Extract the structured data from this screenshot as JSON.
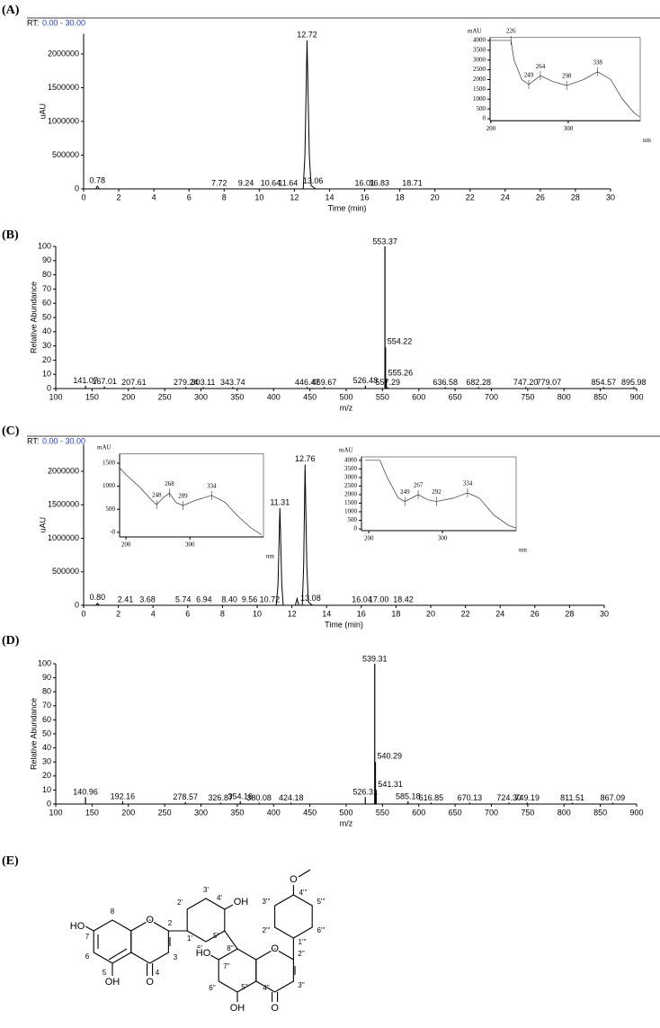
{
  "panel_labels": [
    "(A)",
    "(B)",
    "(C)",
    "(D)",
    "(E)"
  ],
  "chart_data": [
    {
      "type": "line",
      "rt_label": "RT:",
      "rt_range": "0.00 - 30.00",
      "xlabel": "Time (min)",
      "ylabel": "uAU",
      "x": [
        0,
        0.7,
        0.78,
        0.9,
        12.5,
        12.6,
        12.72,
        12.85,
        12.95,
        13.06,
        13.2,
        30
      ],
      "values": [
        0,
        0,
        40000,
        0,
        0,
        500000,
        2200000,
        500000,
        50000,
        30000,
        0,
        0
      ],
      "xlim": [
        0,
        30
      ],
      "ylim": [
        0,
        2300000
      ],
      "xticks": [
        0,
        2,
        4,
        6,
        8,
        10,
        12,
        14,
        16,
        18,
        20,
        22,
        24,
        26,
        28,
        30
      ],
      "yticks": [
        0,
        500000,
        1000000,
        1500000,
        2000000
      ],
      "peak_labels": [
        0.78,
        7.72,
        9.24,
        10.64,
        11.64,
        12.72,
        13.06,
        16.01,
        16.83,
        18.71
      ]
    },
    {
      "type": "line",
      "ylabel": "mAU",
      "xlabel": "nm",
      "x": [
        200,
        226,
        230,
        240,
        249,
        264,
        280,
        298,
        320,
        338,
        355,
        370,
        385,
        392
      ],
      "values": [
        4000,
        4000,
        3000,
        2000,
        1750,
        2200,
        1900,
        1700,
        2000,
        2400,
        2000,
        1000,
        300,
        100
      ],
      "xlim": [
        199,
        393
      ],
      "ylim": [
        -100,
        4150
      ],
      "xticks": [
        200,
        300
      ],
      "yticks": [
        0,
        500,
        1000,
        1500,
        2000,
        2500,
        3000,
        3500,
        4000
      ],
      "peak_labels": [
        226,
        249,
        264,
        298,
        338
      ]
    },
    {
      "type": "stem",
      "xlabel": "m/z",
      "ylabel": "Relative Abundance",
      "x": [
        141.07,
        167.01,
        207.61,
        279.24,
        303.11,
        343.74,
        446.47,
        469.67,
        526.48,
        553.37,
        554.22,
        555.26,
        557.29,
        636.58,
        682.28,
        {
          "value": 747.2,
          "label": "747.20"
        },
        779.07,
        854.57,
        895.98
      ],
      "values": [
        2,
        1.5,
        1,
        1,
        1,
        1,
        1,
        1,
        2,
        100,
        29,
        7,
        1,
        1,
        1,
        1,
        1,
        1,
        1
      ],
      "xlim": [
        100,
        900
      ],
      "ylim": [
        0,
        100
      ],
      "xticks": [
        100,
        150,
        200,
        250,
        300,
        350,
        400,
        450,
        500,
        550,
        600,
        650,
        700,
        750,
        800,
        850,
        900
      ],
      "yticks": [
        0,
        10,
        20,
        30,
        40,
        50,
        60,
        70,
        80,
        90,
        100
      ]
    },
    {
      "type": "line",
      "rt_label": "RT:",
      "rt_range": "0.00 - 30.00",
      "xlabel": "Time (min)",
      "ylabel": "uAU",
      "x": [
        0,
        0.7,
        0.8,
        0.9,
        11.1,
        11.2,
        11.31,
        11.42,
        11.5,
        12.2,
        12.3,
        12.4,
        12.6,
        12.68,
        12.76,
        12.86,
        12.95,
        13.08,
        13.2,
        30
      ],
      "values": [
        0,
        0,
        30000,
        0,
        0,
        300000,
        1450000,
        300000,
        0,
        0,
        100000,
        0,
        0,
        600000,
        2100000,
        600000,
        50000,
        20000,
        0,
        0
      ],
      "xlim": [
        0,
        30
      ],
      "ylim": [
        0,
        2400000
      ],
      "xticks": [
        0,
        2,
        4,
        6,
        8,
        10,
        12,
        14,
        16,
        18,
        20,
        22,
        24,
        26,
        28,
        30
      ],
      "yticks": [
        0,
        500000,
        1000000,
        1500000,
        2000000
      ],
      "peak_labels": [
        {
          "value": 0.8,
          "label": "0.80"
        },
        2.41,
        3.68,
        5.74,
        6.94,
        {
          "value": 8.4,
          "label": "8.40"
        },
        9.56,
        10.72,
        11.31,
        12.76,
        13.08,
        16.04,
        {
          "value": 17,
          "label": "17.00"
        },
        18.42
      ]
    },
    {
      "type": "line",
      "ylabel": "mAU",
      "xlabel": "nm",
      "x": [
        190,
        200,
        220,
        240,
        248,
        258,
        268,
        278,
        289,
        310,
        334,
        355,
        375,
        395,
        412
      ],
      "values": [
        1400,
        1250,
        1000,
        700,
        600,
        750,
        850,
        650,
        580,
        700,
        800,
        650,
        350,
        100,
        -50
      ],
      "xlim": [
        190,
        415
      ],
      "ylim": [
        -100,
        1700
      ],
      "xticks": [
        200,
        300
      ],
      "yticks": [
        {
          "value": 0,
          "label": "-0"
        },
        500,
        1000,
        1500
      ],
      "peak_labels": [
        248,
        268,
        289,
        334
      ]
    },
    {
      "type": "line",
      "ylabel": "mAU",
      "xlabel": "nm",
      "x": [
        195,
        215,
        225,
        240,
        249,
        267,
        280,
        292,
        315,
        334,
        350,
        370,
        390,
        400
      ],
      "values": [
        4000,
        4000,
        3000,
        1800,
        1600,
        2000,
        1700,
        1600,
        1800,
        2100,
        1800,
        800,
        200,
        50
      ],
      "xlim": [
        190,
        400
      ],
      "ylim": [
        -100,
        4200
      ],
      "xticks": [
        200,
        300
      ],
      "yticks": [
        0,
        500,
        1000,
        1500,
        2000,
        2500,
        3000,
        3500,
        4000
      ],
      "peak_labels": [
        249,
        267,
        292,
        334
      ]
    },
    {
      "type": "stem",
      "xlabel": "m/z",
      "ylabel": "Relative Abundance",
      "x": [
        140.96,
        192.16,
        278.57,
        326.87,
        354.16,
        380.08,
        424.18,
        526.31,
        539.31,
        540.29,
        541.31,
        585.18,
        616.85,
        670.13,
        {
          "value": 724.3,
          "label": "724.30"
        },
        749.19,
        811.51,
        867.09
      ],
      "values": [
        5,
        2,
        1.5,
        1,
        2,
        1,
        1,
        5,
        100,
        30,
        10,
        2,
        1,
        1,
        1,
        1,
        1,
        1
      ],
      "xlim": [
        100,
        900
      ],
      "ylim": [
        0,
        100
      ],
      "xticks": [
        100,
        150,
        200,
        250,
        300,
        350,
        400,
        450,
        500,
        550,
        600,
        650,
        700,
        750,
        800,
        850,
        900
      ],
      "yticks": [
        0,
        10,
        20,
        30,
        40,
        50,
        60,
        70,
        80,
        90,
        100
      ]
    }
  ],
  "structure": {
    "labels": [
      "HO",
      "OH",
      "O",
      "O",
      "8",
      "7",
      "6",
      "5",
      "4",
      "3",
      "2",
      "1'",
      "2'",
      "3'",
      "4'",
      "OH",
      "5'",
      "6'",
      "8''",
      "7''",
      "HO",
      "6''",
      "5''",
      "OH",
      "O",
      "2''",
      "3''",
      "4''",
      "O",
      "1'''",
      "2'''",
      "3'''",
      "4'''",
      "5'''",
      "6'''",
      "O"
    ]
  }
}
